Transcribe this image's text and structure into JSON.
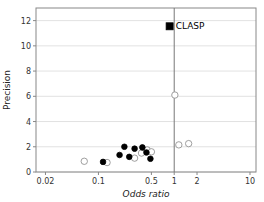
{
  "chart_data": {
    "type": "scatter",
    "title": "",
    "xlabel": "Odds ratio",
    "ylabel": "Precision",
    "log": "x",
    "grid": "y",
    "xlim": [
      0.015,
      12
    ],
    "xticks": [
      0.02,
      0.1,
      0.5,
      1,
      2,
      10
    ],
    "ylim": [
      0,
      13
    ],
    "yticks": [
      0,
      2,
      4,
      6,
      8,
      10,
      12
    ],
    "annotations": [
      {
        "type": "vline",
        "x": 1.0,
        "color": "#777777"
      }
    ],
    "series": [
      {
        "marker": "circle-open",
        "color": "#888888",
        "x": [
          0.065,
          0.13,
          0.3,
          0.37,
          0.44,
          0.5,
          1.02,
          1.15,
          1.55
        ],
        "values": [
          0.85,
          0.75,
          1.1,
          1.5,
          1.75,
          1.6,
          6.1,
          2.15,
          2.25
        ]
      },
      {
        "marker": "circle",
        "color": "#000000",
        "x": [
          0.115,
          0.19,
          0.22,
          0.255,
          0.3,
          0.38,
          0.43,
          0.485
        ],
        "values": [
          0.8,
          1.35,
          2.0,
          1.2,
          1.85,
          1.95,
          1.55,
          1.05
        ]
      },
      {
        "name": "CLASP",
        "marker": "square",
        "color": "#000000",
        "x": [
          0.87
        ],
        "values": [
          11.55
        ]
      }
    ]
  }
}
